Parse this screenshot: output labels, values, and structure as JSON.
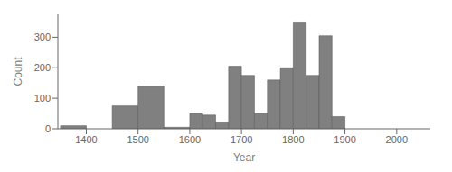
{
  "chart_data": {
    "type": "histogram",
    "bins": [
      1350,
      1400,
      1450,
      1500,
      1550,
      1600,
      1625,
      1650,
      1675,
      1700,
      1725,
      1750,
      1775,
      1800,
      1825,
      1850,
      1875,
      1900,
      1925,
      1950,
      1975
    ],
    "values": [
      10,
      0,
      75,
      140,
      5,
      50,
      45,
      20,
      205,
      175,
      50,
      160,
      200,
      350,
      175,
      305,
      40,
      0,
      0,
      0
    ],
    "color": "#808080",
    "xlabel": "Year",
    "ylabel": "Count",
    "xlim": [
      1345,
      2065
    ],
    "xticks": [
      1400,
      1500,
      1600,
      1700,
      1800,
      1900,
      2000
    ],
    "ylim": [
      0,
      375
    ],
    "yticks": [
      0,
      100,
      200,
      300
    ]
  }
}
